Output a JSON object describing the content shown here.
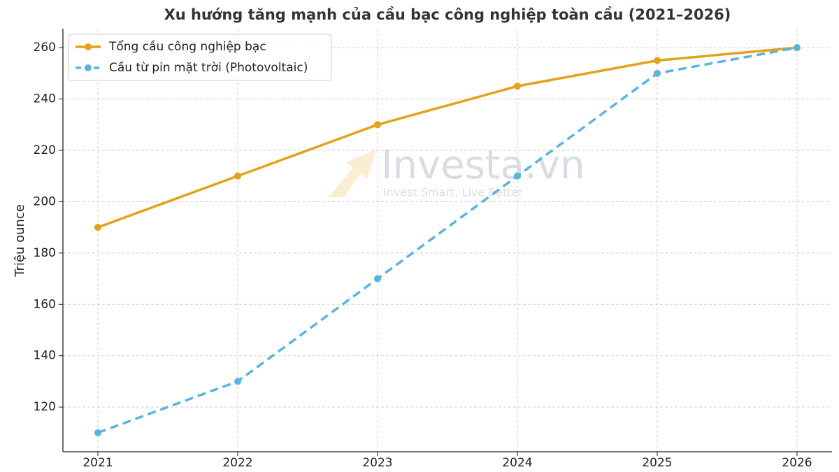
{
  "chart_data": {
    "type": "line",
    "title": "Xu hướng tăng mạnh của cầu bạc công nghiệp toàn cầu (2021–2026)",
    "y_label": "Triệu ounce",
    "watermark": "Investa.vn",
    "watermark_tagline": "Invest Smart, Live Better",
    "x": [
      2021,
      2022,
      2023,
      2024,
      2025,
      2026
    ],
    "series": [
      {
        "name": "Tổng cầu công nghiệp bạc",
        "color": "#e3a21a",
        "dash": false,
        "values": [
          190,
          210,
          230,
          245,
          255,
          260
        ]
      },
      {
        "name": "Cầu từ pin mặt trời (Photovoltaic)",
        "color": "#5ab4e0",
        "dash": true,
        "values": [
          110,
          130,
          170,
          210,
          250,
          260
        ]
      }
    ],
    "xlim": [
      2020.75,
      2026.25
    ],
    "xticks": [
      2021,
      2022,
      2023,
      2024,
      2025,
      2026
    ],
    "ylim": [
      102.6,
      267.4
    ],
    "yticks": [
      120,
      140,
      160,
      180,
      200,
      220,
      240,
      260
    ],
    "grid": true,
    "legend": "upper-left"
  }
}
